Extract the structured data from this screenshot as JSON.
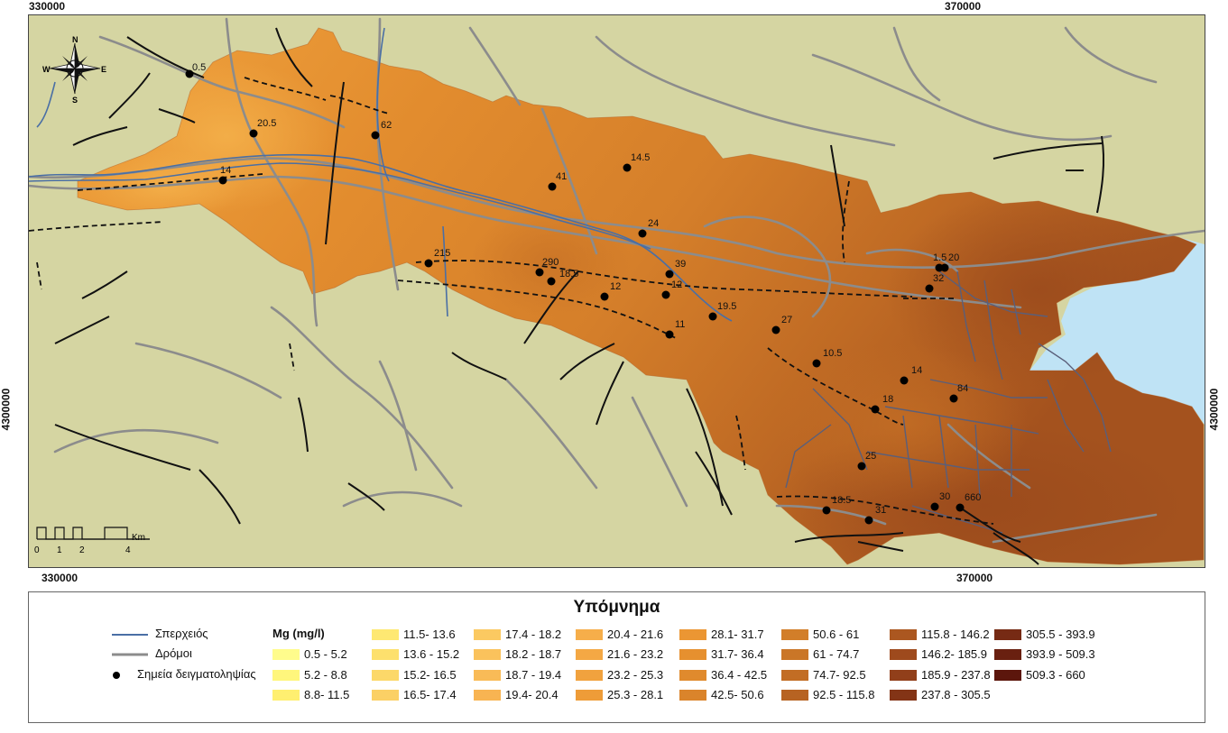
{
  "map": {
    "coord_ticks": {
      "top": [
        "330000",
        "370000"
      ],
      "bottom": [
        "330000",
        "370000"
      ],
      "left": "4300000",
      "right": "4300000"
    },
    "north_arrow": {
      "N": "N",
      "S": "S",
      "E": "E",
      "W": "W"
    },
    "scale_bar": {
      "labels": [
        "0",
        "1",
        "2",
        "4"
      ],
      "unit": "Km"
    },
    "colors": {
      "background": "#d5d5a2",
      "sea": "#bfe3f5",
      "river": "#4a6fa5",
      "roads": "#8c8c8c",
      "faults": "#111111",
      "sample_point": "#000000"
    },
    "sample_labels": [
      "0.5",
      "20.5",
      "62",
      "14",
      "14.5",
      "41",
      "24",
      "215",
      "290",
      "18.5",
      "39",
      "12",
      "12",
      "19.5",
      "27",
      "11",
      "10.5",
      "14",
      "84",
      "18",
      "25",
      "18.5",
      "31",
      "30",
      "660",
      "1.5",
      "20",
      "32"
    ]
  },
  "legend": {
    "title": "Υπόμνημα",
    "symbols": [
      {
        "label": "Σπερχειός",
        "icon": "river-line"
      },
      {
        "label": "Δρόμοι",
        "icon": "road-line"
      },
      {
        "label": "Σημεία δειγματοληψίας",
        "icon": "sample-dot"
      }
    ],
    "class_title": "Mg (mg/l)",
    "classes": [
      {
        "label": "0.5 - 5.2",
        "color": "#fffc8c"
      },
      {
        "label": "5.2 - 8.8",
        "color": "#fff67c"
      },
      {
        "label": "8.8- 11.5",
        "color": "#ffef70"
      },
      {
        "label": "11.5- 13.6",
        "color": "#fee872"
      },
      {
        "label": "13.6 - 15.2",
        "color": "#fde06d"
      },
      {
        "label": "15.2- 16.5",
        "color": "#fcd869"
      },
      {
        "label": "16.5- 17.4",
        "color": "#fbd065"
      },
      {
        "label": "17.4 - 18.2",
        "color": "#fbc961"
      },
      {
        "label": "18.2 - 18.7",
        "color": "#fac25c"
      },
      {
        "label": "18.7 - 19.4",
        "color": "#f9bb57"
      },
      {
        "label": "19.4- 20.4",
        "color": "#f8b452"
      },
      {
        "label": "20.4 - 21.6",
        "color": "#f6ae4a"
      },
      {
        "label": "21.6 - 23.2",
        "color": "#f4a844"
      },
      {
        "label": "23.2 - 25.3",
        "color": "#f1a23e"
      },
      {
        "label": "25.3 - 28.1",
        "color": "#ee9c38"
      },
      {
        "label": "28.1- 31.7",
        "color": "#eb9633"
      },
      {
        "label": "31.7- 36.4",
        "color": "#e6902f"
      },
      {
        "label": "36.4 - 42.5",
        "color": "#e08a2d"
      },
      {
        "label": "42.5- 50.6",
        "color": "#da842b"
      },
      {
        "label": "50.6 - 61",
        "color": "#d27e29"
      },
      {
        "label": "61 - 74.7",
        "color": "#ca7627"
      },
      {
        "label": "74.7- 92.5",
        "color": "#c26d24"
      },
      {
        "label": "92.5 - 115.8",
        "color": "#b76322"
      },
      {
        "label": "115.8 - 146.2",
        "color": "#ab5720"
      },
      {
        "label": "146.2- 185.9",
        "color": "#9e4a1d"
      },
      {
        "label": "185.9 - 237.8",
        "color": "#913f1a"
      },
      {
        "label": "237.8 - 305.5",
        "color": "#833416"
      },
      {
        "label": "305.5 - 393.9",
        "color": "#762a14"
      },
      {
        "label": "393.9 - 509.3",
        "color": "#692010"
      },
      {
        "label": "509.3 - 660",
        "color": "#5c160c"
      }
    ]
  }
}
